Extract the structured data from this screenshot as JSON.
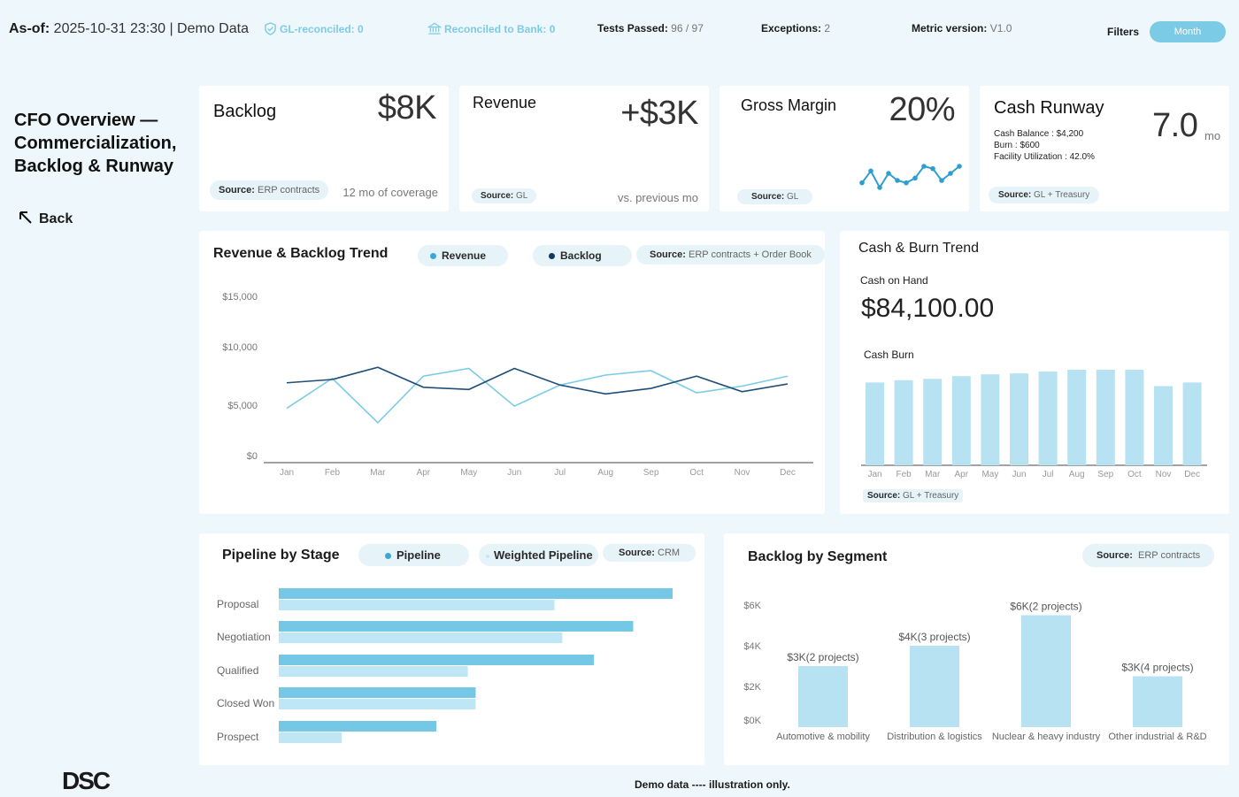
{
  "topbar": {
    "asof_label": "As-of:",
    "asof_value": "2025-10-31 23:30 | Demo Data",
    "gl_reconciled": "GL-reconciled: 0",
    "bank_reconciled": "Reconciled to Bank: 0",
    "tests_label": "Tests Passed:",
    "tests_value": "96 / 97",
    "exceptions_label": "Exceptions:",
    "exceptions_value": "2",
    "metric_label": "Metric version:",
    "metric_value": "V1.0",
    "filters_label": "Filters",
    "month_button": "Month",
    "accent": "#7ccbe6"
  },
  "sidebar": {
    "title": "CFO Overview — Commercialization, Backlog & Runway",
    "back_label": "Back",
    "logo_text": "DSC"
  },
  "kpis": {
    "backlog": {
      "title": "Backlog",
      "value": "$8K",
      "source_label": "Source:",
      "source_value": "ERP contracts",
      "note": "12 mo of coverage"
    },
    "revenue": {
      "title": "Revenue",
      "value": "+$3K",
      "source_label": "Source:",
      "source_value": "GL",
      "note": "vs. previous mo"
    },
    "gross_margin": {
      "title": "Gross Margin",
      "value": "20%",
      "source_label": "Source:",
      "source_value": "GL",
      "sparkline": [
        4,
        9,
        2,
        8,
        5,
        4,
        6,
        11,
        10,
        5,
        8,
        11
      ]
    },
    "cash_runway": {
      "title": "Cash Runway",
      "value": "7.0",
      "unit": "mo",
      "line1": "Cash Balance : $4,200",
      "line2": "Burn : $600",
      "line3": "Facility Utilization : 42.0%",
      "source_label": "Source:",
      "source_value": "GL + Treasury"
    }
  },
  "rev_backlog": {
    "title": "Revenue & Backlog Trend",
    "legend_revenue": "Revenue",
    "legend_backlog": "Backlog",
    "source_label": "Source:",
    "source_value": "ERP contracts + Order Book",
    "y_ticks": [
      "$15,000",
      "$10,000",
      "$5,000",
      "$0"
    ],
    "revenue_color": "#7ccbe6",
    "backlog_color": "#1f4e79"
  },
  "cash_burn": {
    "title": "Cash & Burn Trend",
    "cash_label": "Cash on Hand",
    "cash_value": "$84,100.00",
    "burn_label": "Cash Burn",
    "source_label": "Source:",
    "source_value": "GL + Treasury"
  },
  "pipeline": {
    "title": "Pipeline by Stage",
    "legend_pipeline": "Pipeline",
    "legend_weighted": "Weighted Pipeline",
    "source_label": "Source:",
    "source_value": "CRM"
  },
  "segment": {
    "title": "Backlog by Segment",
    "source_label": "Source:",
    "source_value": "ERP contracts"
  },
  "footer": {
    "note": "Demo data ---- illustration only."
  },
  "chart_data": [
    {
      "type": "line",
      "title": "Revenue & Backlog Trend",
      "categories": [
        "Jan",
        "Feb",
        "Mar",
        "Apr",
        "May",
        "Jun",
        "Jul",
        "Aug",
        "Sep",
        "Oct",
        "Nov",
        "Dec"
      ],
      "ylim": [
        0,
        15000
      ],
      "series": [
        {
          "name": "Revenue",
          "values": [
            4900,
            7600,
            3600,
            7800,
            8500,
            5100,
            7000,
            7900,
            8300,
            6300,
            6900,
            7800
          ]
        },
        {
          "name": "Backlog",
          "values": [
            7200,
            7500,
            8600,
            6800,
            6600,
            8500,
            7000,
            6200,
            6700,
            7800,
            6400,
            7100
          ]
        }
      ]
    },
    {
      "type": "bar",
      "title": "Cash Burn",
      "categories": [
        "Jan",
        "Feb",
        "Mar",
        "Apr",
        "May",
        "Jun",
        "Jul",
        "Aug",
        "Sep",
        "Oct",
        "Nov",
        "Dec"
      ],
      "values": [
        910,
        935,
        950,
        980,
        1000,
        1010,
        1030,
        1050,
        1050,
        1050,
        870,
        910
      ]
    },
    {
      "type": "bar",
      "title": "Pipeline by Stage",
      "categories": [
        "Proposal",
        "Negotiation",
        "Qualified",
        "Closed Won",
        "Prospect"
      ],
      "series": [
        {
          "name": "Pipeline",
          "values": [
            100,
            90,
            80,
            50,
            40
          ]
        },
        {
          "name": "Weighted Pipeline",
          "values": [
            70,
            72,
            48,
            50,
            16
          ]
        }
      ]
    },
    {
      "type": "bar",
      "title": "Backlog by Segment",
      "categories": [
        "Automotive & mobility",
        "Distribution & logistics",
        "Nuclear & heavy industry",
        "Other industrial & R&D"
      ],
      "values": [
        3000,
        4000,
        5500,
        2500
      ],
      "data_labels": [
        "$3K(2 projects)",
        "$4K(3 projects)",
        "$6K(2 projects)",
        "$3K(4 projects)"
      ],
      "y_ticks": [
        "$6K",
        "$4K",
        "$2K",
        "$0K"
      ],
      "ylim": [
        0,
        6000
      ]
    }
  ]
}
